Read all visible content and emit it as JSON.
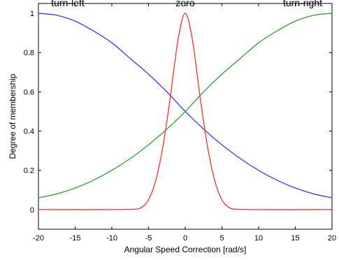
{
  "chart_data": {
    "type": "line",
    "title": "",
    "xlabel": "Angular Speed Correction [rad/s]",
    "ylabel": "Degree of membership",
    "xlim": [
      -20,
      20
    ],
    "ylim": [
      -0.1,
      1.05
    ],
    "xticks": [
      -20,
      -15,
      -10,
      -5,
      0,
      5,
      10,
      15,
      20
    ],
    "yticks": [
      0,
      0.2,
      0.4,
      0.6,
      0.8,
      1
    ],
    "ytick_labels": [
      "0",
      "0.2",
      "0.4",
      "0.6",
      "0.8",
      "1"
    ],
    "grid": false,
    "legend": "none",
    "series": [
      {
        "name": "turn-left",
        "color": "#3a3af0",
        "x": [
          -20,
          -17.5,
          -15,
          -12.5,
          -10,
          -7.5,
          -5,
          -2.5,
          0,
          2.5,
          5,
          7.5,
          10,
          12.5,
          15,
          17.5,
          20
        ],
        "y": [
          1.0,
          0.99,
          0.96,
          0.91,
          0.85,
          0.77,
          0.69,
          0.6,
          0.5,
          0.41,
          0.33,
          0.26,
          0.2,
          0.15,
          0.11,
          0.08,
          0.06
        ]
      },
      {
        "name": "zero",
        "color": "#f03030",
        "x": [
          -20,
          -10,
          -7,
          -6,
          -5,
          -4,
          -3,
          -2,
          -1,
          0,
          1,
          2,
          3,
          4,
          5,
          6,
          7,
          10,
          20
        ],
        "y": [
          0,
          0,
          0.002,
          0.01,
          0.05,
          0.15,
          0.33,
          0.58,
          0.86,
          1.0,
          0.86,
          0.58,
          0.33,
          0.15,
          0.05,
          0.01,
          0.002,
          0,
          0
        ]
      },
      {
        "name": "turn-right",
        "color": "#30a030",
        "x": [
          -20,
          -17.5,
          -15,
          -12.5,
          -10,
          -7.5,
          -5,
          -2.5,
          0,
          2.5,
          5,
          7.5,
          10,
          12.5,
          15,
          17.5,
          20
        ],
        "y": [
          0.06,
          0.08,
          0.11,
          0.15,
          0.2,
          0.26,
          0.33,
          0.41,
          0.5,
          0.6,
          0.69,
          0.77,
          0.85,
          0.91,
          0.96,
          0.99,
          1.0
        ]
      }
    ],
    "annotations": [
      {
        "text": "turn-left",
        "x": -16,
        "y": 1.05
      },
      {
        "text": "zero",
        "x": 0,
        "y": 1.05
      },
      {
        "text": "turn-right",
        "x": 16,
        "y": 1.05
      }
    ]
  }
}
